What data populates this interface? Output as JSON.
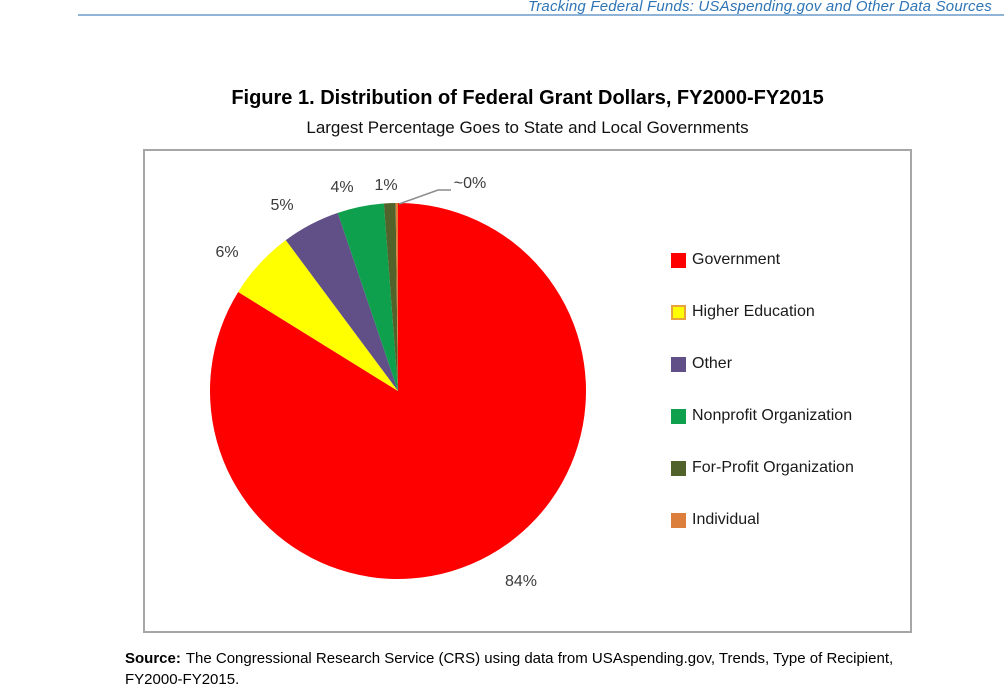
{
  "header": {
    "running_title": "Tracking Federal Funds: USAspending.gov and Other Data Sources",
    "text_color": "#2E75B6",
    "rule_color": "#8FB4D8"
  },
  "figure": {
    "title": "Figure 1. Distribution of Federal Grant Dollars, FY2000-FY2015",
    "subtitle": "Largest Percentage Goes to State and Local Governments"
  },
  "chart_data": {
    "type": "pie",
    "title": "Figure 1. Distribution of Federal Grant Dollars, FY2000-FY2015",
    "subtitle": "Largest Percentage Goes to State and Local Governments",
    "categories": [
      "Government",
      "Higher Education",
      "Other",
      "Nonprofit Organization",
      "For-Profit Organization",
      "Individual"
    ],
    "values": [
      84,
      6,
      5,
      4,
      1,
      0.2
    ],
    "slice_labels": [
      "84%",
      "6%",
      "5%",
      "4%",
      "1%",
      "~0%"
    ],
    "colors": [
      "#FE0000",
      "#FFFF00",
      "#615087",
      "#0FA04D",
      "#51632A",
      "#DC7F3C"
    ],
    "swatch_border_colors": [
      "#FE0000",
      "#E8A33D",
      "#615087",
      "#0FA04D",
      "#51632A",
      "#DC7F3C"
    ],
    "legend_position": "right",
    "start_angle_deg": 0,
    "direction": "clockwise",
    "frame_border_color": "#A6A6A6",
    "label_color": "#3B3B3B"
  },
  "source_note": {
    "label": "Source:",
    "text": "The Congressional Research Service (CRS) using data from USAspending.gov, Trends, Type of Recipient, FY2000-FY2015."
  }
}
